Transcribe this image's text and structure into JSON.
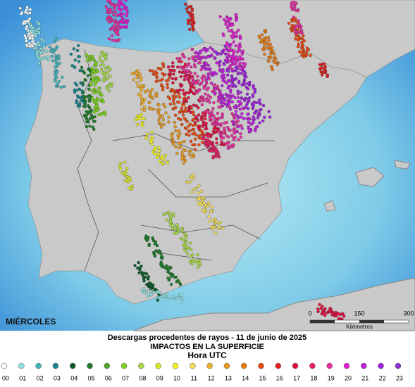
{
  "map": {
    "day_label": "MIÉRCOLES",
    "title": "Descargas procedentes de rayos - 11 de junio de 2025",
    "subtitle": "IMPACTOS EN LA SUPERFICIE",
    "legend_title": "Hora UTC",
    "legend": [
      {
        "label": "00",
        "color": "#f4fbfb"
      },
      {
        "label": "01",
        "color": "#8ee0e0"
      },
      {
        "label": "02",
        "color": "#3fb3bb"
      },
      {
        "label": "03",
        "color": "#17838f"
      },
      {
        "label": "04",
        "color": "#0b5a2a"
      },
      {
        "label": "05",
        "color": "#1f7d2a"
      },
      {
        "label": "06",
        "color": "#4aa82a"
      },
      {
        "label": "07",
        "color": "#7ed321"
      },
      {
        "label": "08",
        "color": "#a8d84a"
      },
      {
        "label": "09",
        "color": "#d6e82a"
      },
      {
        "label": "10",
        "color": "#f2f22a"
      },
      {
        "label": "11",
        "color": "#f5e05a"
      },
      {
        "label": "12",
        "color": "#f0b030"
      },
      {
        "label": "13",
        "color": "#e89a20"
      },
      {
        "label": "14",
        "color": "#ea7a10"
      },
      {
        "label": "15",
        "color": "#e84a10"
      },
      {
        "label": "16",
        "color": "#e02020"
      },
      {
        "label": "17",
        "color": "#e01040"
      },
      {
        "label": "18",
        "color": "#e8206a"
      },
      {
        "label": "19",
        "color": "#e830a0"
      },
      {
        "label": "20",
        "color": "#e020d0"
      },
      {
        "label": "21",
        "color": "#c020e0"
      },
      {
        "label": "22",
        "color": "#a020e0"
      },
      {
        "label": "23",
        "color": "#9030d0"
      }
    ],
    "scale": {
      "ticks": [
        "0",
        "150",
        "300"
      ],
      "unit": "Kilómetros"
    }
  }
}
